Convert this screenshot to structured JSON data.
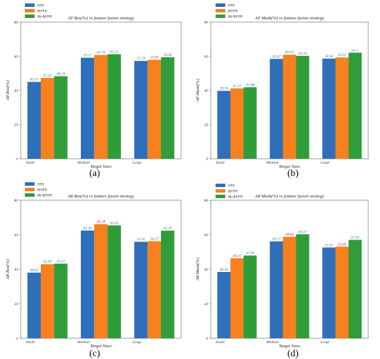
{
  "colors": {
    "FPN": "#2e6fba",
    "BiFPN": "#f7811e",
    "Mt-BiFPN": "#2f9d3a",
    "labelDefault": "#1e7a77",
    "labelAccent": "#c2186b"
  },
  "chart_data": [
    {
      "type": "bar",
      "panel": "(a)",
      "title": "AP Box(%) vs feature fusion strategy",
      "xlabel": "Target Sizes",
      "ylabel": "AP Box(%)",
      "ylim": [
        0,
        80
      ],
      "yticks": [
        0,
        20,
        40,
        60,
        80
      ],
      "categories": [
        "Small",
        "Medium",
        "Large"
      ],
      "legend_position": "top-left",
      "series": [
        {
          "name": "FPN",
          "values": [
            45.01,
            59.17,
            57.29
          ],
          "labels": [
            "45.01",
            "59.17",
            "57.29"
          ]
        },
        {
          "name": "BiFPN",
          "values": [
            47.31,
            60.76,
            57.95
          ],
          "labels": [
            "47.31",
            "60.76",
            "57.95"
          ]
        },
        {
          "name": "Mt-BiFPN",
          "values": [
            48.29,
            61.21,
            59.46
          ],
          "labels": [
            "48.29",
            "61.21",
            "59.46"
          ]
        }
      ]
    },
    {
      "type": "bar",
      "panel": "(b)",
      "title": "AP Mask(%) vs feature fusion strategy",
      "xlabel": "Target Sizes",
      "ylabel": "AP Mask(%)",
      "ylim": [
        0,
        80
      ],
      "yticks": [
        0,
        20,
        40,
        60,
        80
      ],
      "categories": [
        "Small",
        "Medium",
        "Large"
      ],
      "legend_position": "top-left",
      "series": [
        {
          "name": "FPN",
          "values": [
            39.76,
            58.47,
            58.63
          ],
          "labels": [
            "39.76",
            "58.47",
            "58.63"
          ]
        },
        {
          "name": "BiFPN",
          "values": [
            41.17,
            60.92,
            59.31
          ],
          "labels": [
            "41.17",
            "60.92",
            "59.31"
          ]
        },
        {
          "name": "Mt-BiFPN",
          "values": [
            41.88,
            60.24,
            62.1
          ],
          "labels": [
            "41.88",
            "60.24",
            "62.1"
          ]
        }
      ]
    },
    {
      "type": "bar",
      "panel": "(c)",
      "title": "AR Box(%) vs feature fusion strategy",
      "xlabel": "Target Sizes",
      "ylabel": "AR Box(%)",
      "ylim": [
        0,
        80
      ],
      "yticks": [
        0,
        20,
        40,
        60,
        80
      ],
      "categories": [
        "Small",
        "Medium",
        "Large"
      ],
      "legend_position": "top-left",
      "series": [
        {
          "name": "FPN",
          "values": [
            38.05,
            62.44,
            55.91
          ],
          "labels": [
            "38.05",
            "62.44",
            "55.91"
          ]
        },
        {
          "name": "BiFPN",
          "values": [
            42.93,
            66.18,
            56.27
          ],
          "labels": [
            "42.93",
            "66.18",
            "56.27"
          ]
        },
        {
          "name": "Mt-BiFPN",
          "values": [
            43.27,
            65.42,
            62.37
          ],
          "labels": [
            "43.27",
            "65.42",
            "62.37"
          ]
        }
      ]
    },
    {
      "type": "bar",
      "panel": "(d)",
      "title": "AR Mask(%) vs feature fusion strategy",
      "xlabel": "Target Sizes",
      "ylabel": "AR Mask(%)",
      "ylim": [
        0,
        80
      ],
      "yticks": [
        0,
        20,
        40,
        60,
        80
      ],
      "categories": [
        "Small",
        "Medium",
        "Large"
      ],
      "legend_position": "top-left",
      "series": [
        {
          "name": "FPN",
          "values": [
            38.43,
            56.17,
            52.61
          ],
          "labels": [
            "38.43",
            "56.17",
            "52.61"
          ]
        },
        {
          "name": "BiFPN",
          "values": [
            46.37,
            58.82,
            53.09
          ],
          "labels": [
            "46.37",
            "58.82",
            "53.09"
          ]
        },
        {
          "name": "Mt-BiFPN",
          "values": [
            47.96,
            60.27,
            57.05
          ],
          "labels": [
            "47.96",
            "60.27",
            "57.05"
          ]
        }
      ]
    }
  ]
}
